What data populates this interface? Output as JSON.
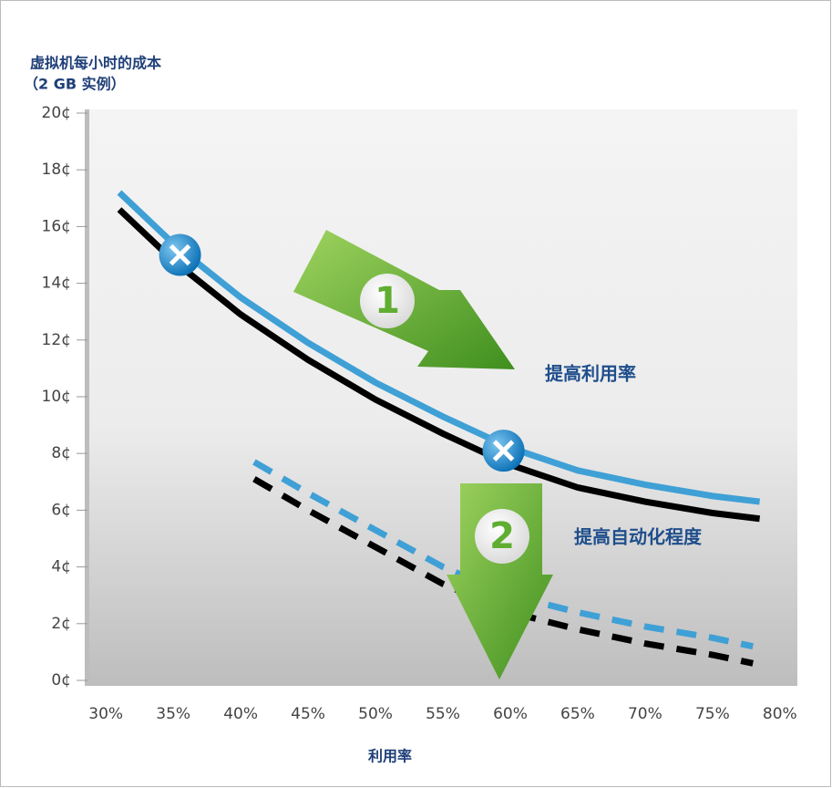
{
  "chart_data": {
    "type": "line",
    "title_lines": [
      "虚拟机每小时的成本",
      "（2 GB 实例）"
    ],
    "xlabel": "利用率",
    "xlim": [
      28.5,
      81.5
    ],
    "ylim": [
      0,
      20
    ],
    "xticks": [
      {
        "value": 30,
        "label": "30%"
      },
      {
        "value": 35,
        "label": "35%"
      },
      {
        "value": 40,
        "label": "40%"
      },
      {
        "value": 45,
        "label": "45%"
      },
      {
        "value": 50,
        "label": "50%"
      },
      {
        "value": 55,
        "label": "55%"
      },
      {
        "value": 60,
        "label": "60%"
      },
      {
        "value": 65,
        "label": "65%"
      },
      {
        "value": 70,
        "label": "70%"
      },
      {
        "value": 75,
        "label": "75%"
      },
      {
        "value": 80,
        "label": "80%"
      }
    ],
    "yticks": [
      {
        "value": 0,
        "label": "0¢"
      },
      {
        "value": 2,
        "label": "2¢"
      },
      {
        "value": 4,
        "label": "4¢"
      },
      {
        "value": 6,
        "label": "6¢"
      },
      {
        "value": 8,
        "label": "8¢"
      },
      {
        "value": 10,
        "label": "10¢"
      },
      {
        "value": 12,
        "label": "12¢"
      },
      {
        "value": 14,
        "label": "14¢"
      },
      {
        "value": 16,
        "label": "16¢"
      },
      {
        "value": 18,
        "label": "18¢"
      },
      {
        "value": 20,
        "label": "20¢"
      }
    ],
    "series": [
      {
        "color": "#000000",
        "dashed": false,
        "x": [
          31,
          35,
          40,
          45,
          50,
          55,
          60,
          65,
          70,
          75,
          78.5
        ],
        "values": [
          16.6,
          14.8,
          12.9,
          11.3,
          9.9,
          8.7,
          7.6,
          6.8,
          6.3,
          5.9,
          5.7
        ]
      },
      {
        "color": "#3fa0d6",
        "dashed": false,
        "x": [
          31,
          35,
          40,
          45,
          50,
          55,
          60,
          65,
          70,
          75,
          78.5
        ],
        "values": [
          17.2,
          15.4,
          13.5,
          11.9,
          10.5,
          9.3,
          8.2,
          7.4,
          6.9,
          6.5,
          6.3
        ]
      },
      {
        "color": "#000000",
        "dashed": true,
        "x": [
          41,
          45,
          50,
          55,
          60,
          65,
          70,
          75,
          78
        ],
        "values": [
          7.1,
          6.0,
          4.7,
          3.4,
          2.4,
          1.8,
          1.3,
          0.9,
          0.6
        ]
      },
      {
        "color": "#3fa0d6",
        "dashed": true,
        "x": [
          41,
          45,
          50,
          55,
          60,
          65,
          70,
          75,
          78
        ],
        "values": [
          7.7,
          6.6,
          5.3,
          4.0,
          3.0,
          2.4,
          1.9,
          1.5,
          1.2
        ]
      }
    ],
    "markers": {
      "x": [
        35.5,
        59.5
      ],
      "values": [
        15,
        8.1
      ]
    },
    "annotations": [
      "1",
      "提高利用率",
      "2",
      "提高自动化程度"
    ]
  }
}
